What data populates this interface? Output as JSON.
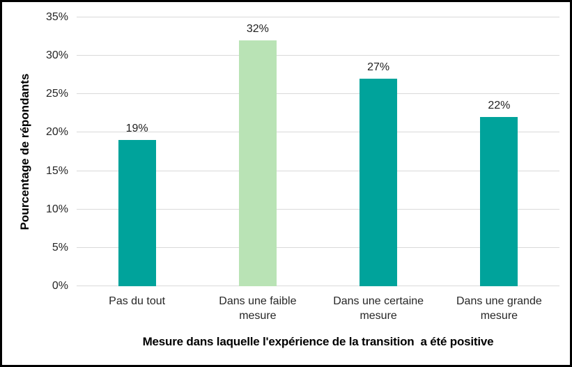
{
  "chart_data": {
    "type": "bar",
    "title": "",
    "categories": [
      "Pas du tout",
      "Dans une faible mesure",
      "Dans une certaine mesure",
      "Dans une grande mesure"
    ],
    "values": [
      19,
      32,
      27,
      22
    ],
    "value_labels": [
      "19%",
      "32%",
      "27%",
      "22%"
    ],
    "xlabel": "Mesure dans laquelle l'expérience de la transition  a été positive",
    "ylabel": "Pourcentage de répondants",
    "ylim": [
      0,
      35
    ],
    "ytick_step": 5,
    "yticks": [
      "0%",
      "5%",
      "10%",
      "15%",
      "20%",
      "25%",
      "30%",
      "35%"
    ],
    "grid": true,
    "legend": false,
    "bar_colors": [
      "#00A39B",
      "#B9E3B5",
      "#00A39B",
      "#00A39B"
    ]
  },
  "colors": {
    "teal_bar": "#00A39B",
    "light_green_bar": "#B9E3B5",
    "gridline": "#D9D9D9",
    "tick_text": "#262626",
    "title_text": "#000000",
    "frame_border": "#000000",
    "background": "#FFFFFF"
  }
}
